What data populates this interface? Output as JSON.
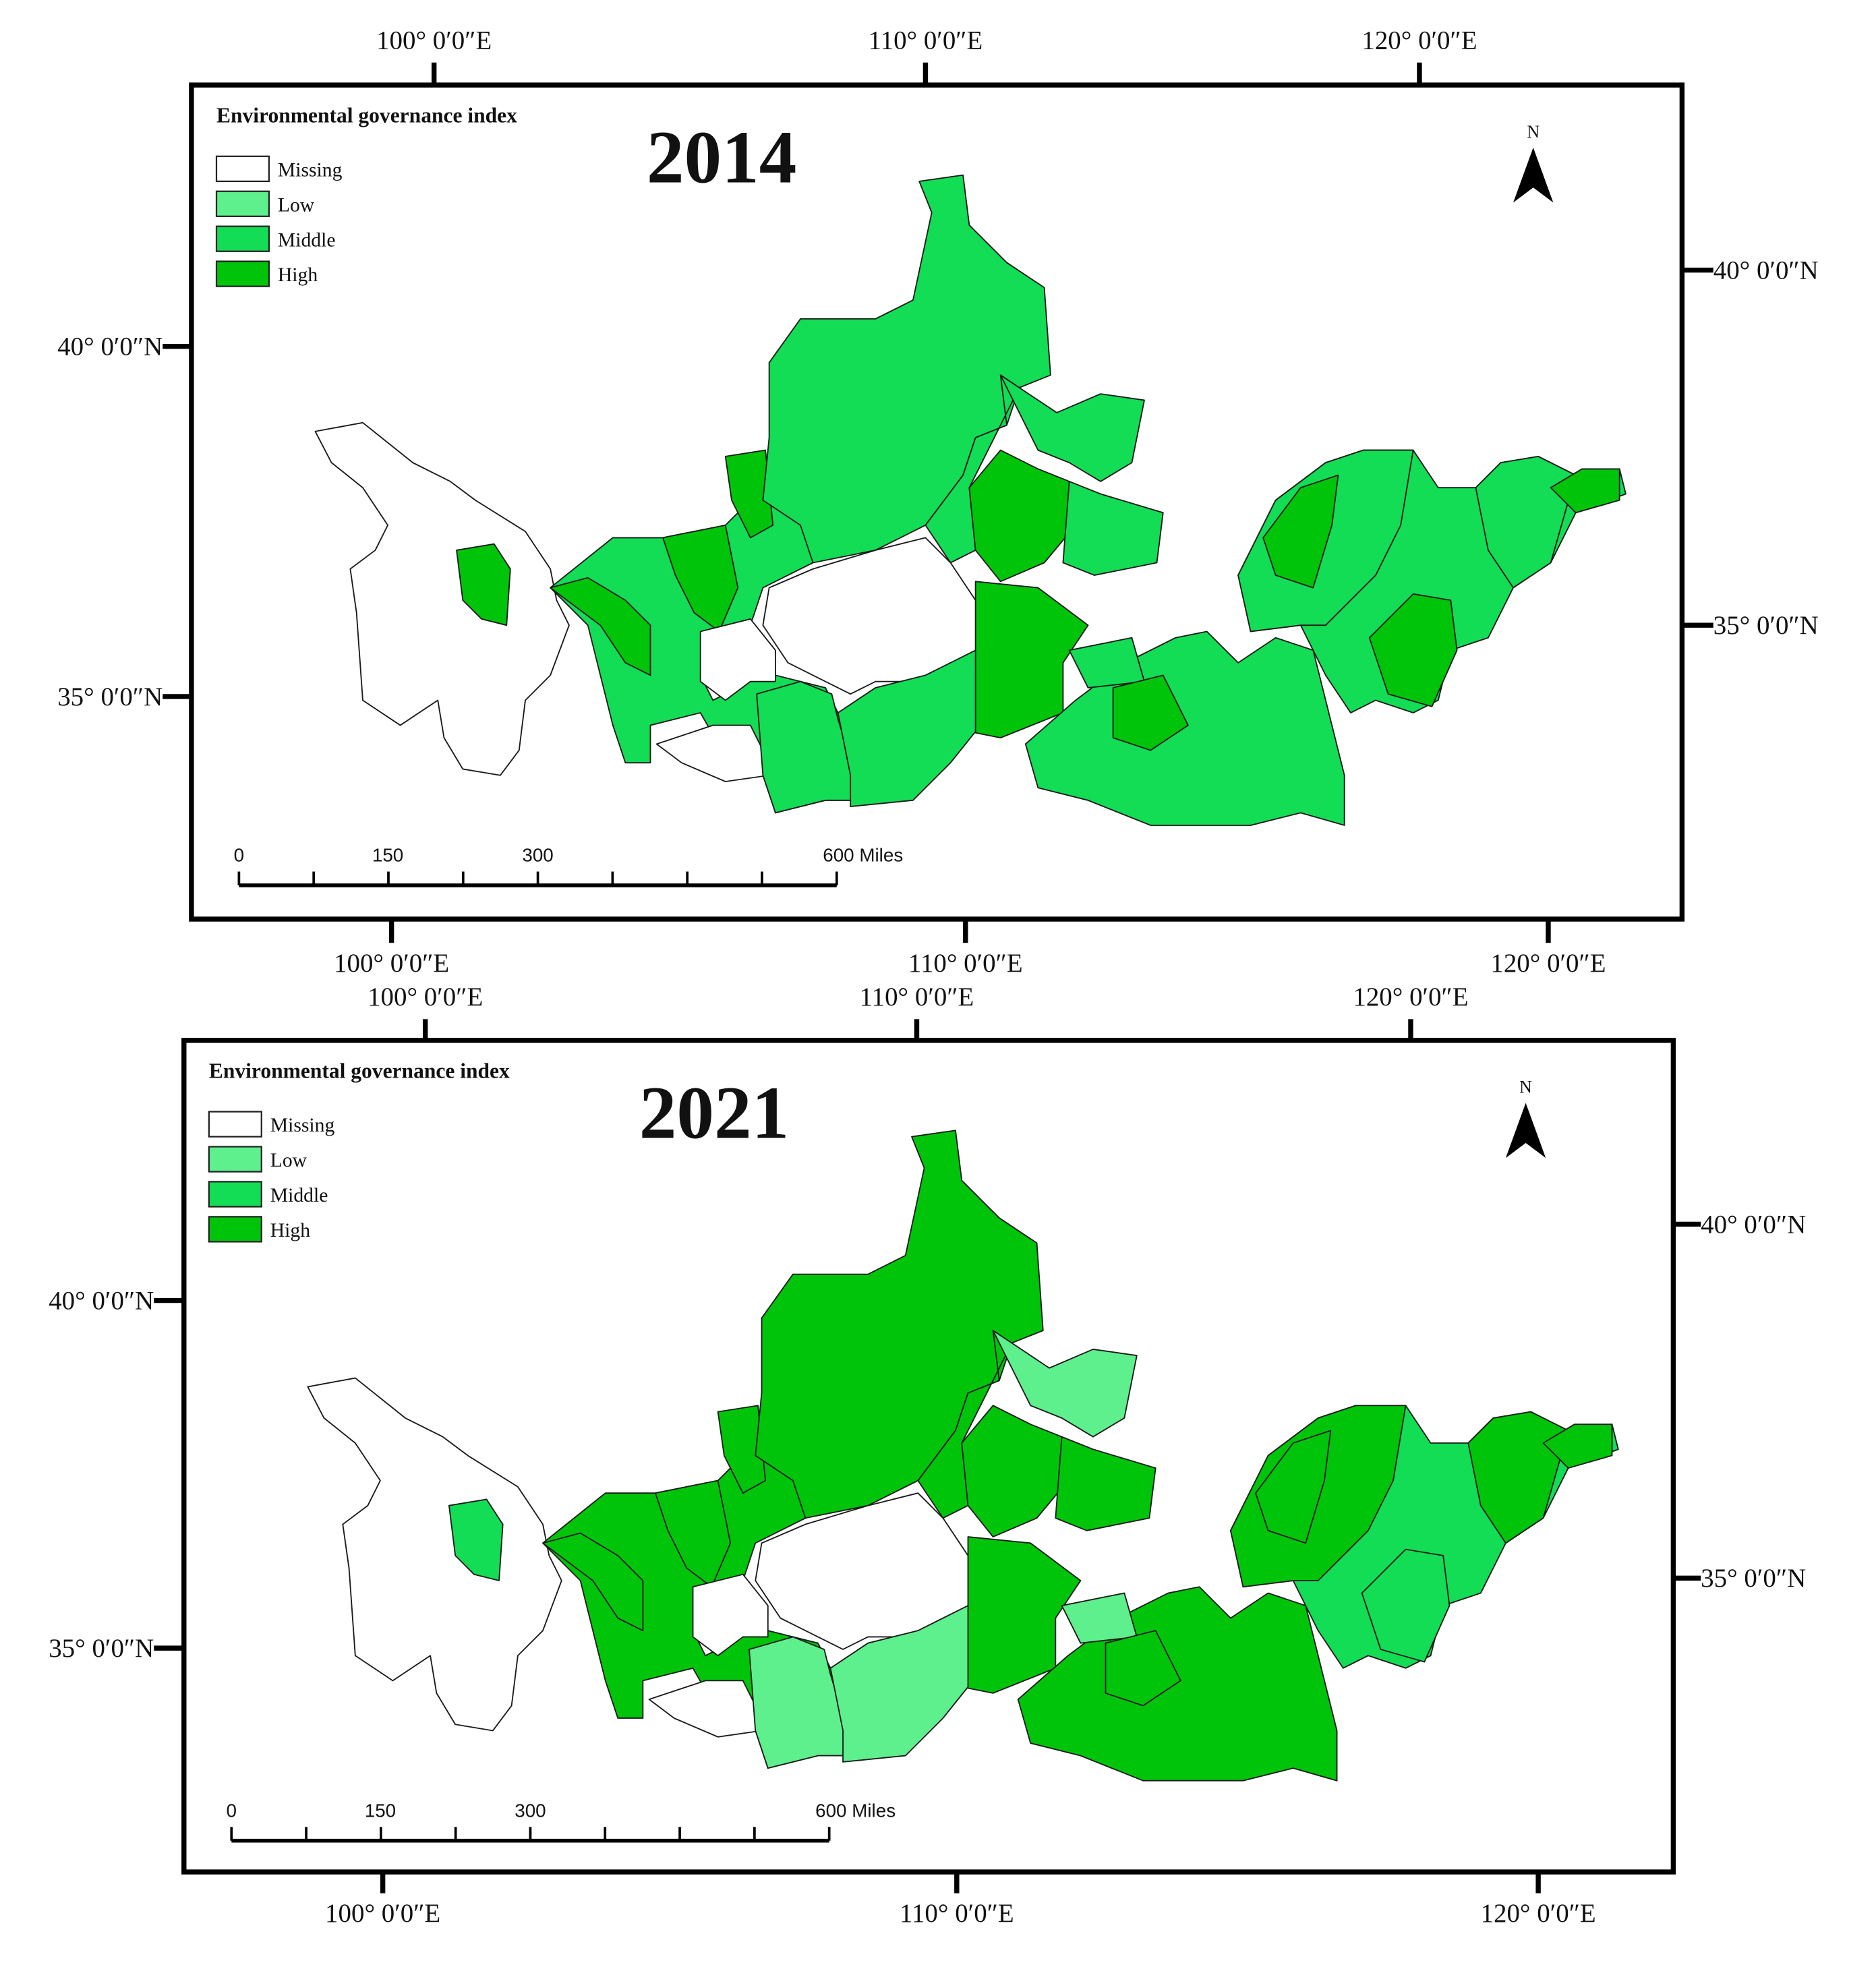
{
  "panels": [
    {
      "year": "2014",
      "legend": {
        "title": "Environmental governance index",
        "items": [
          "Missing",
          "Low",
          "Middle",
          "High"
        ]
      },
      "north": "N",
      "top_ticks": [
        "100° 0′0″E",
        "110° 0′0″E",
        "120° 0′0″E"
      ],
      "bottom_ticks": [
        "100° 0′0″E",
        "110° 0′0″E",
        "120° 0′0″E"
      ],
      "left_ticks": [
        "40° 0′0″N",
        "35° 0′0″N"
      ],
      "right_ticks": [
        "40° 0′0″N",
        "35° 0′0″N"
      ],
      "scale": [
        "0",
        "150",
        "300",
        "600 Miles"
      ]
    },
    {
      "year": "2021",
      "legend": {
        "title": "Environmental governance index",
        "items": [
          "Missing",
          "Low",
          "Middle",
          "High"
        ]
      },
      "north": "N",
      "top_ticks": [
        "100° 0′0″E",
        "110° 0′0″E",
        "120° 0′0″E"
      ],
      "bottom_ticks": [
        "100° 0′0″E",
        "110° 0′0″E",
        "120° 0′0″E"
      ],
      "left_ticks": [
        "40° 0′0″N",
        "35° 0′0″N"
      ],
      "right_ticks": [
        "40° 0′0″N",
        "35° 0′0″N"
      ],
      "scale": [
        "0",
        "150",
        "300",
        "600 Miles"
      ]
    }
  ]
}
